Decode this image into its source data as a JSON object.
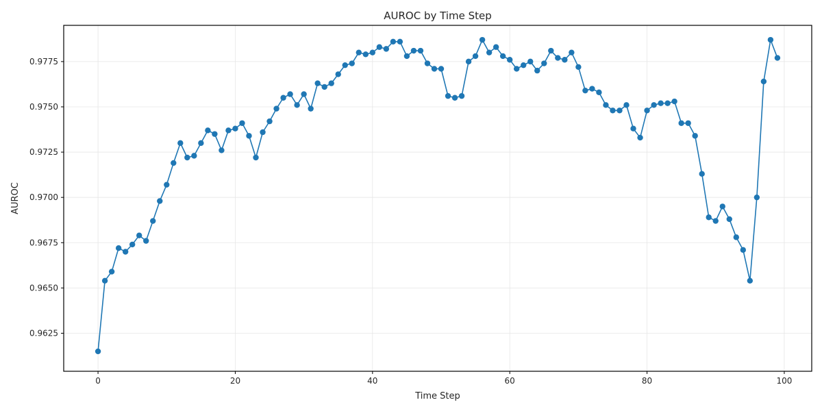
{
  "chart_data": {
    "type": "line",
    "title": "AUROC by Time Step",
    "xlabel": "Time Step",
    "ylabel": "AUROC",
    "xlim": [
      -5,
      104
    ],
    "ylim": [
      0.9604,
      0.9795
    ],
    "xticks": [
      0,
      20,
      40,
      60,
      80,
      100
    ],
    "yticks": [
      0.9625,
      0.965,
      0.9675,
      0.97,
      0.9725,
      0.975,
      0.9775
    ],
    "xtick_labels": [
      "0",
      "20",
      "40",
      "60",
      "80",
      "100"
    ],
    "ytick_labels": [
      "0.9625",
      "0.9650",
      "0.9675",
      "0.9700",
      "0.9725",
      "0.9750",
      "0.9775"
    ],
    "grid": true,
    "color": "#1f77b4",
    "marker": "circle",
    "series": [
      {
        "name": "",
        "x": [
          0,
          1,
          2,
          3,
          4,
          5,
          6,
          7,
          8,
          9,
          10,
          11,
          12,
          13,
          14,
          15,
          16,
          17,
          18,
          19,
          20,
          21,
          22,
          23,
          24,
          25,
          26,
          27,
          28,
          29,
          30,
          31,
          32,
          33,
          34,
          35,
          36,
          37,
          38,
          39,
          40,
          41,
          42,
          43,
          44,
          45,
          46,
          47,
          48,
          49,
          50,
          51,
          52,
          53,
          54,
          55,
          56,
          57,
          58,
          59,
          60,
          61,
          62,
          63,
          64,
          65,
          66,
          67,
          68,
          69,
          70,
          71,
          72,
          73,
          74,
          75,
          76,
          77,
          78,
          79,
          80,
          81,
          82,
          83,
          84,
          85,
          86,
          87,
          88,
          89,
          90,
          91,
          92,
          93,
          94,
          95,
          96,
          97,
          98,
          99
        ],
        "y": [
          0.9615,
          0.9654,
          0.9659,
          0.9672,
          0.967,
          0.9674,
          0.9679,
          0.9676,
          0.9687,
          0.9698,
          0.9707,
          0.9719,
          0.973,
          0.9722,
          0.9723,
          0.973,
          0.9737,
          0.9735,
          0.9726,
          0.9737,
          0.9738,
          0.9741,
          0.9734,
          0.9722,
          0.9736,
          0.9742,
          0.9749,
          0.9755,
          0.9757,
          0.9751,
          0.9757,
          0.9749,
          0.9763,
          0.9761,
          0.9763,
          0.9768,
          0.9773,
          0.9774,
          0.978,
          0.9779,
          0.978,
          0.9783,
          0.9782,
          0.9786,
          0.9786,
          0.9778,
          0.9781,
          0.9781,
          0.9774,
          0.9771,
          0.9771,
          0.9756,
          0.9755,
          0.9756,
          0.9775,
          0.9778,
          0.9787,
          0.978,
          0.9783,
          0.9778,
          0.9776,
          0.9771,
          0.9773,
          0.9775,
          0.977,
          0.9774,
          0.9781,
          0.9777,
          0.9776,
          0.978,
          0.9772,
          0.9759,
          0.976,
          0.9758,
          0.9751,
          0.9748,
          0.9748,
          0.9751,
          0.9738,
          0.9733,
          0.9748,
          0.9751,
          0.9752,
          0.9752,
          0.9753,
          0.9741,
          0.9741,
          0.9734,
          0.9713,
          0.9689,
          0.9687,
          0.9695,
          0.9688,
          0.9678,
          0.9671,
          0.9654,
          0.97,
          0.9764,
          0.9787,
          0.9777
        ]
      }
    ]
  }
}
